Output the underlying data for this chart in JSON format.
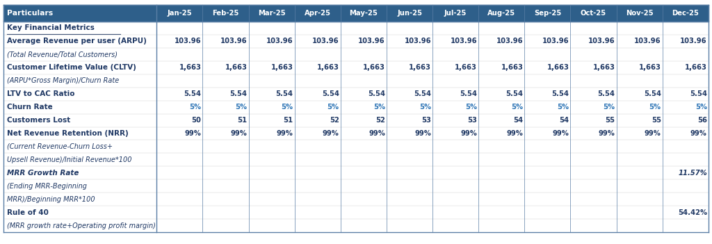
{
  "header_bg": "#2E5F8A",
  "header_text_color": "#FFFFFF",
  "body_bg": "#FFFFFF",
  "body_text_color": "#1F3864",
  "churn_color": "#2E75B6",
  "border_color": "#5B7FA6",
  "col_header": "Particulars",
  "months": [
    "Jan-25",
    "Feb-25",
    "Mar-25",
    "Apr-25",
    "May-25",
    "Jun-25",
    "Jul-25",
    "Aug-25",
    "Sep-25",
    "Oct-25",
    "Nov-25",
    "Dec-25"
  ],
  "rows": [
    {
      "label": "Key Financial Metrics",
      "type": "section_header",
      "values": [
        "",
        "",
        "",
        "",
        "",
        "",
        "",
        "",
        "",
        "",
        "",
        ""
      ]
    },
    {
      "label": "Average Revenue per user (ARPU)",
      "type": "bold",
      "values": [
        "103.96",
        "103.96",
        "103.96",
        "103.96",
        "103.96",
        "103.96",
        "103.96",
        "103.96",
        "103.96",
        "103.96",
        "103.96",
        "103.96"
      ]
    },
    {
      "label": "(Total Revenue/Total Customers)",
      "type": "italic",
      "values": [
        "",
        "",
        "",
        "",
        "",
        "",
        "",
        "",
        "",
        "",
        "",
        ""
      ]
    },
    {
      "label": "Customer Lifetime Value (CLTV)",
      "type": "bold",
      "values": [
        "1,663",
        "1,663",
        "1,663",
        "1,663",
        "1,663",
        "1,663",
        "1,663",
        "1,663",
        "1,663",
        "1,663",
        "1,663",
        "1,663"
      ]
    },
    {
      "label": "(ARPU*Gross Margin)/Churn Rate",
      "type": "italic",
      "values": [
        "",
        "",
        "",
        "",
        "",
        "",
        "",
        "",
        "",
        "",
        "",
        ""
      ]
    },
    {
      "label": "LTV to CAC Ratio",
      "type": "bold",
      "values": [
        "5.54",
        "5.54",
        "5.54",
        "5.54",
        "5.54",
        "5.54",
        "5.54",
        "5.54",
        "5.54",
        "5.54",
        "5.54",
        "5.54"
      ]
    },
    {
      "label": "Churn Rate",
      "type": "bold_churn",
      "values": [
        "5%",
        "5%",
        "5%",
        "5%",
        "5%",
        "5%",
        "5%",
        "5%",
        "5%",
        "5%",
        "5%",
        "5%"
      ]
    },
    {
      "label": "Customers Lost",
      "type": "bold",
      "values": [
        "50",
        "51",
        "51",
        "52",
        "52",
        "53",
        "53",
        "54",
        "54",
        "55",
        "55",
        "56"
      ]
    },
    {
      "label": "Net Revenue Retention (NRR)",
      "type": "bold",
      "values": [
        "99%",
        "99%",
        "99%",
        "99%",
        "99%",
        "99%",
        "99%",
        "99%",
        "99%",
        "99%",
        "99%",
        "99%"
      ]
    },
    {
      "label": "(Current Revenue-Churn Loss+",
      "type": "italic",
      "values": [
        "",
        "",
        "",
        "",
        "",
        "",
        "",
        "",
        "",
        "",
        "",
        ""
      ]
    },
    {
      "label": "Upsell Revenue)/Initial Revenue*100",
      "type": "italic",
      "values": [
        "",
        "",
        "",
        "",
        "",
        "",
        "",
        "",
        "",
        "",
        "",
        ""
      ]
    },
    {
      "label": "MRR Growth Rate",
      "type": "bold_italic",
      "values": [
        "",
        "",
        "",
        "",
        "",
        "",
        "",
        "",
        "",
        "",
        "",
        "11.57%"
      ]
    },
    {
      "label": "(Ending MRR-Beginning",
      "type": "italic",
      "values": [
        "",
        "",
        "",
        "",
        "",
        "",
        "",
        "",
        "",
        "",
        "",
        ""
      ]
    },
    {
      "label": "MRR)/Beginning MRR*100",
      "type": "italic",
      "values": [
        "",
        "",
        "",
        "",
        "",
        "",
        "",
        "",
        "",
        "",
        "",
        ""
      ]
    },
    {
      "label": "Rule of 40",
      "type": "bold",
      "values": [
        "",
        "",
        "",
        "",
        "",
        "",
        "",
        "",
        "",
        "",
        "",
        "54.42%"
      ]
    },
    {
      "label": "(MRR growth rate+Operating profit margin)",
      "type": "italic",
      "values": [
        "",
        "",
        "",
        "",
        "",
        "",
        "",
        "",
        "",
        "",
        "",
        ""
      ]
    }
  ]
}
